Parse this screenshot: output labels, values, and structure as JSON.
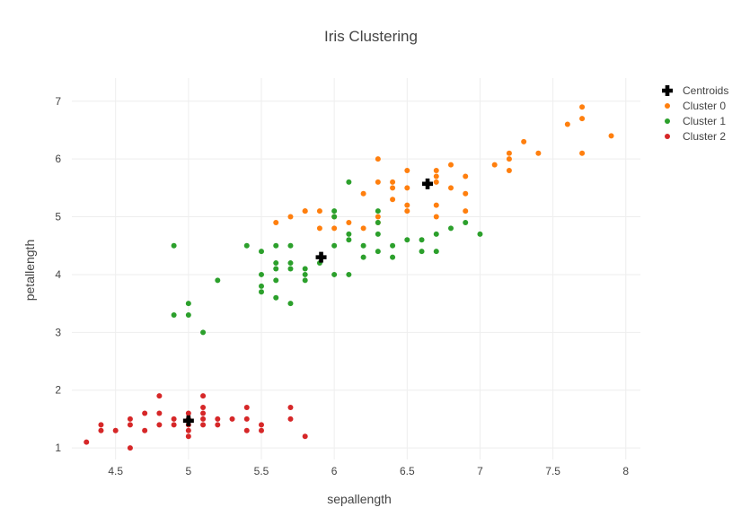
{
  "chart_data": {
    "type": "scatter",
    "title": "Iris Clustering",
    "xlabel": "sepallength",
    "ylabel": "petallength",
    "xlim": [
      4.2,
      8.1
    ],
    "ylim": [
      0.8,
      7.4
    ],
    "xticks": [
      4.5,
      5,
      5.5,
      6,
      6.5,
      7,
      7.5,
      8
    ],
    "xtick_labels": [
      "4.5",
      "5",
      "5.5",
      "6",
      "6.5",
      "7",
      "7.5",
      "8"
    ],
    "yticks": [
      1,
      2,
      3,
      4,
      5,
      6,
      7
    ],
    "ytick_labels": [
      "1",
      "2",
      "3",
      "4",
      "5",
      "6",
      "7"
    ],
    "grid": true,
    "legend_position": "top-right",
    "series": [
      {
        "name": "Centroids",
        "marker": "cross",
        "color": "#000000",
        "points": [
          [
            5.0,
            1.47
          ],
          [
            5.91,
            4.3
          ],
          [
            6.64,
            5.57
          ]
        ]
      },
      {
        "name": "Cluster 0",
        "marker": "circle",
        "color": "#ff7f0e",
        "points": [
          [
            5.6,
            4.9
          ],
          [
            5.7,
            5.0
          ],
          [
            5.8,
            5.1
          ],
          [
            5.8,
            5.1
          ],
          [
            5.9,
            5.1
          ],
          [
            5.9,
            4.8
          ],
          [
            6.0,
            4.8
          ],
          [
            6.0,
            5.0
          ],
          [
            6.1,
            4.9
          ],
          [
            6.2,
            4.8
          ],
          [
            6.2,
            5.4
          ],
          [
            6.3,
            5.6
          ],
          [
            6.3,
            6.0
          ],
          [
            6.3,
            5.0
          ],
          [
            6.3,
            4.9
          ],
          [
            6.4,
            5.5
          ],
          [
            6.4,
            5.3
          ],
          [
            6.4,
            5.6
          ],
          [
            6.5,
            5.8
          ],
          [
            6.5,
            5.5
          ],
          [
            6.5,
            5.1
          ],
          [
            6.5,
            5.2
          ],
          [
            6.7,
            5.6
          ],
          [
            6.7,
            5.7
          ],
          [
            6.7,
            5.8
          ],
          [
            6.7,
            5.2
          ],
          [
            6.7,
            5.0
          ],
          [
            6.8,
            5.5
          ],
          [
            6.8,
            5.9
          ],
          [
            6.9,
            5.7
          ],
          [
            6.9,
            5.4
          ],
          [
            6.9,
            5.1
          ],
          [
            7.1,
            5.9
          ],
          [
            7.2,
            6.0
          ],
          [
            7.2,
            6.1
          ],
          [
            7.2,
            5.8
          ],
          [
            7.3,
            6.3
          ],
          [
            7.4,
            6.1
          ],
          [
            7.6,
            6.6
          ],
          [
            7.7,
            6.9
          ],
          [
            7.7,
            6.7
          ],
          [
            7.7,
            6.1
          ],
          [
            7.9,
            6.4
          ]
        ]
      },
      {
        "name": "Cluster 1",
        "marker": "circle",
        "color": "#2ca02c",
        "points": [
          [
            4.9,
            4.5
          ],
          [
            4.9,
            3.3
          ],
          [
            5.0,
            3.5
          ],
          [
            5.0,
            3.3
          ],
          [
            5.1,
            3.0
          ],
          [
            5.2,
            3.9
          ],
          [
            5.4,
            4.5
          ],
          [
            5.5,
            4.4
          ],
          [
            5.5,
            4.0
          ],
          [
            5.5,
            3.8
          ],
          [
            5.5,
            3.7
          ],
          [
            5.6,
            4.5
          ],
          [
            5.6,
            4.2
          ],
          [
            5.6,
            4.1
          ],
          [
            5.6,
            3.9
          ],
          [
            5.6,
            3.6
          ],
          [
            5.7,
            4.5
          ],
          [
            5.7,
            4.2
          ],
          [
            5.7,
            4.1
          ],
          [
            5.7,
            3.5
          ],
          [
            5.8,
            4.1
          ],
          [
            5.8,
            4.0
          ],
          [
            5.8,
            3.9
          ],
          [
            5.9,
            4.2
          ],
          [
            6.0,
            5.1
          ],
          [
            6.0,
            5.0
          ],
          [
            6.0,
            4.5
          ],
          [
            6.0,
            4.0
          ],
          [
            6.1,
            5.6
          ],
          [
            6.1,
            4.7
          ],
          [
            6.1,
            4.6
          ],
          [
            6.1,
            4.0
          ],
          [
            6.2,
            4.5
          ],
          [
            6.2,
            4.3
          ],
          [
            6.3,
            5.1
          ],
          [
            6.3,
            4.9
          ],
          [
            6.3,
            4.7
          ],
          [
            6.3,
            4.4
          ],
          [
            6.4,
            4.5
          ],
          [
            6.4,
            4.3
          ],
          [
            6.5,
            4.6
          ],
          [
            6.6,
            4.6
          ],
          [
            6.6,
            4.4
          ],
          [
            6.7,
            4.7
          ],
          [
            6.7,
            4.4
          ],
          [
            6.8,
            4.8
          ],
          [
            6.9,
            4.9
          ],
          [
            7.0,
            4.7
          ]
        ]
      },
      {
        "name": "Cluster 2",
        "marker": "circle",
        "color": "#d62728",
        "points": [
          [
            4.3,
            1.1
          ],
          [
            4.4,
            1.4
          ],
          [
            4.4,
            1.3
          ],
          [
            4.5,
            1.3
          ],
          [
            4.6,
            1.5
          ],
          [
            4.6,
            1.4
          ],
          [
            4.6,
            1.0
          ],
          [
            4.7,
            1.6
          ],
          [
            4.7,
            1.3
          ],
          [
            4.8,
            1.9
          ],
          [
            4.8,
            1.6
          ],
          [
            4.8,
            1.4
          ],
          [
            4.9,
            1.5
          ],
          [
            4.9,
            1.4
          ],
          [
            5.0,
            1.6
          ],
          [
            5.0,
            1.5
          ],
          [
            5.0,
            1.4
          ],
          [
            5.0,
            1.3
          ],
          [
            5.0,
            1.2
          ],
          [
            5.1,
            1.9
          ],
          [
            5.1,
            1.7
          ],
          [
            5.1,
            1.6
          ],
          [
            5.1,
            1.5
          ],
          [
            5.1,
            1.4
          ],
          [
            5.2,
            1.5
          ],
          [
            5.2,
            1.4
          ],
          [
            5.3,
            1.5
          ],
          [
            5.4,
            1.7
          ],
          [
            5.4,
            1.5
          ],
          [
            5.4,
            1.3
          ],
          [
            5.5,
            1.4
          ],
          [
            5.5,
            1.3
          ],
          [
            5.7,
            1.7
          ],
          [
            5.7,
            1.5
          ],
          [
            5.8,
            1.2
          ]
        ]
      }
    ]
  }
}
